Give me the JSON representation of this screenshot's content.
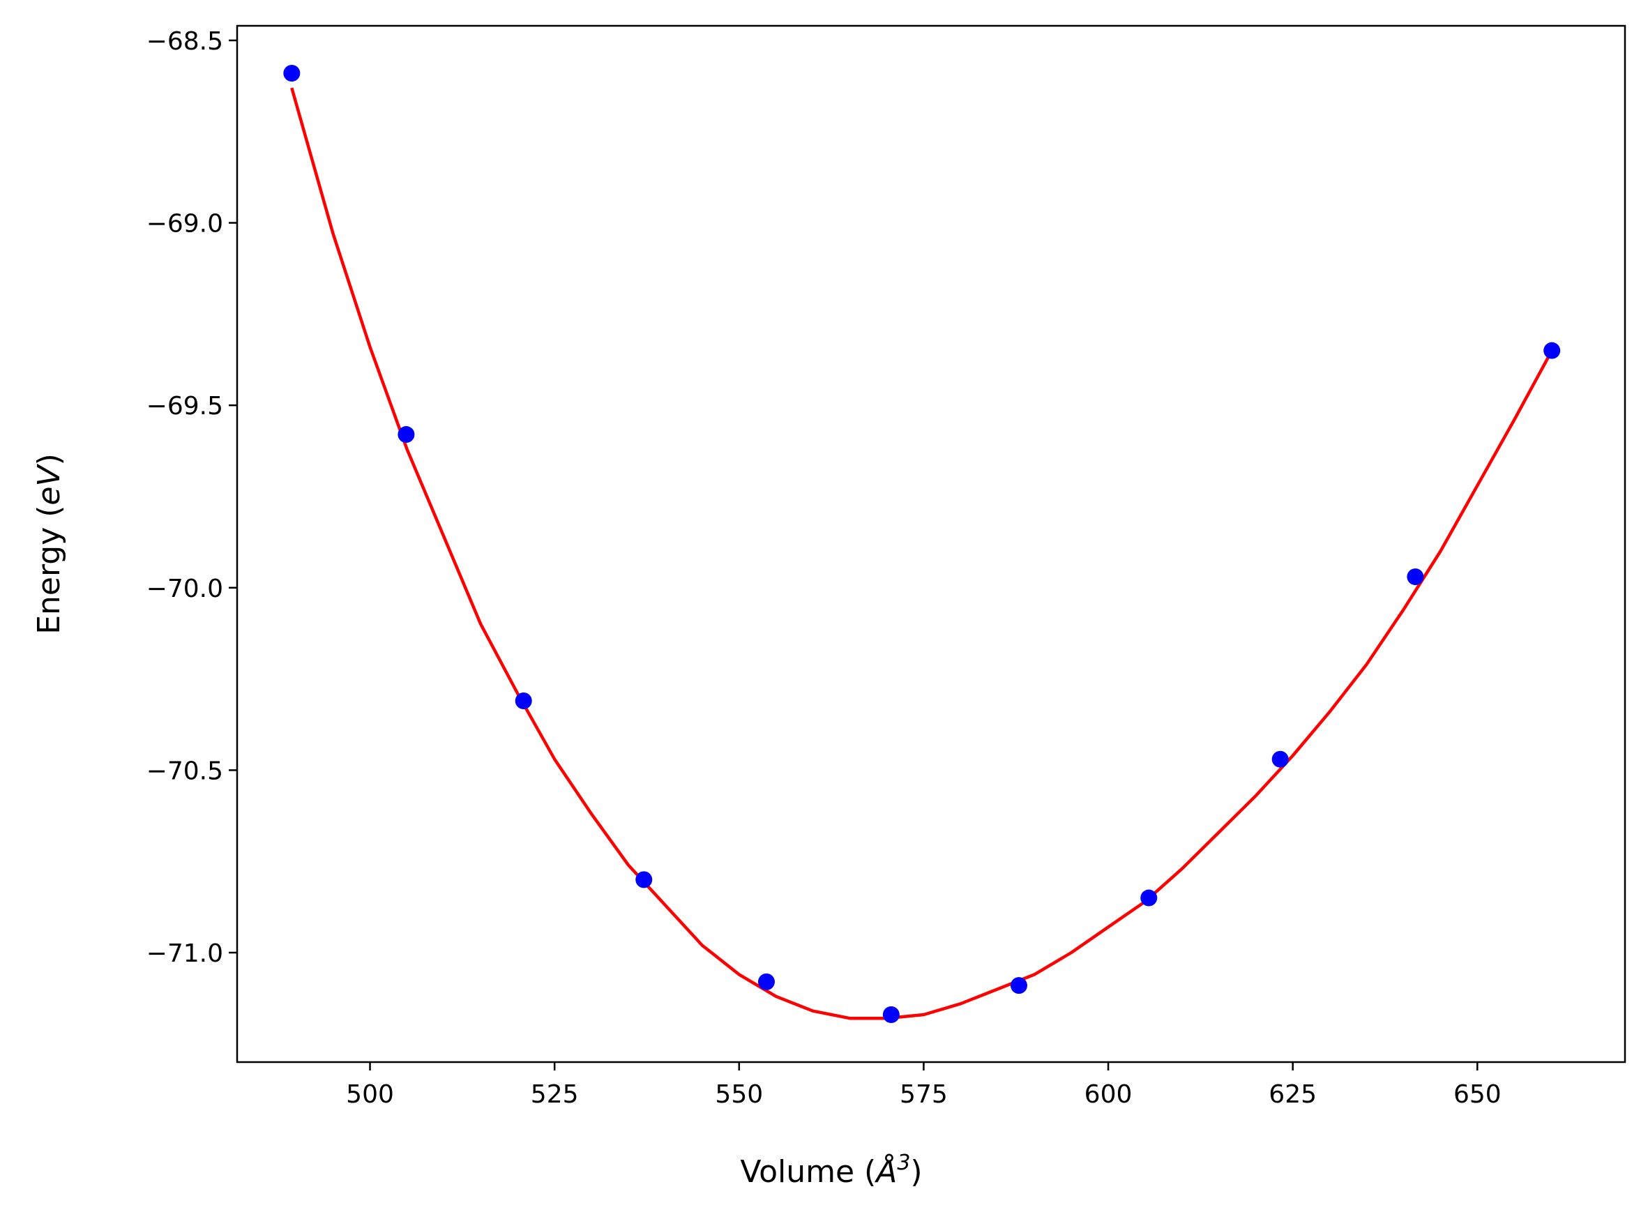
{
  "chart_data": {
    "type": "scatter",
    "xlabel": "Volume (",
    "xlabel_unit_base": "Å",
    "xlabel_unit_sup": "3",
    "xlabel_close": ")",
    "ylabel": "Energy (",
    "ylabel_unit": "eV",
    "ylabel_close": ")",
    "xlim": [
      482,
      670
    ],
    "ylim": [
      -71.3,
      -68.46
    ],
    "xticks": [
      500,
      525,
      550,
      575,
      600,
      625,
      650
    ],
    "xtick_labels": [
      "500",
      "525",
      "550",
      "575",
      "600",
      "625",
      "650"
    ],
    "yticks": [
      -68.5,
      -69.0,
      -69.5,
      -70.0,
      -70.5,
      -71.0
    ],
    "ytick_labels": [
      "−68.5",
      "−69.0",
      "−69.5",
      "−70.0",
      "−70.5",
      "−71.0"
    ],
    "grid": false,
    "series": [
      {
        "kind": "points",
        "color": "#0000ff",
        "x": [
          489.4,
          504.9,
          520.8,
          537.1,
          553.7,
          570.6,
          587.9,
          605.5,
          623.3,
          641.6,
          660.1
        ],
        "y": [
          -68.59,
          -69.58,
          -70.31,
          -70.8,
          -71.08,
          -71.17,
          -71.09,
          -70.85,
          -70.47,
          -69.97,
          -69.35
        ]
      },
      {
        "kind": "fit-curve",
        "color": "#ff0000",
        "x": [
          489.4,
          495,
          500,
          505,
          510,
          515,
          520,
          525,
          530,
          535,
          540,
          545,
          550,
          555,
          560,
          565,
          570,
          575,
          580,
          585,
          590,
          595,
          600,
          605,
          610,
          615,
          620,
          625,
          630,
          635,
          640,
          645,
          650,
          655,
          660.1
        ],
        "y": [
          -68.63,
          -69.03,
          -69.34,
          -69.62,
          -69.86,
          -70.1,
          -70.29,
          -70.47,
          -70.62,
          -70.76,
          -70.87,
          -70.98,
          -71.06,
          -71.12,
          -71.16,
          -71.18,
          -71.18,
          -71.17,
          -71.14,
          -71.1,
          -71.06,
          -71.0,
          -70.93,
          -70.86,
          -70.77,
          -70.67,
          -70.57,
          -70.46,
          -70.34,
          -70.21,
          -70.06,
          -69.9,
          -69.72,
          -69.54,
          -69.35
        ]
      }
    ]
  }
}
